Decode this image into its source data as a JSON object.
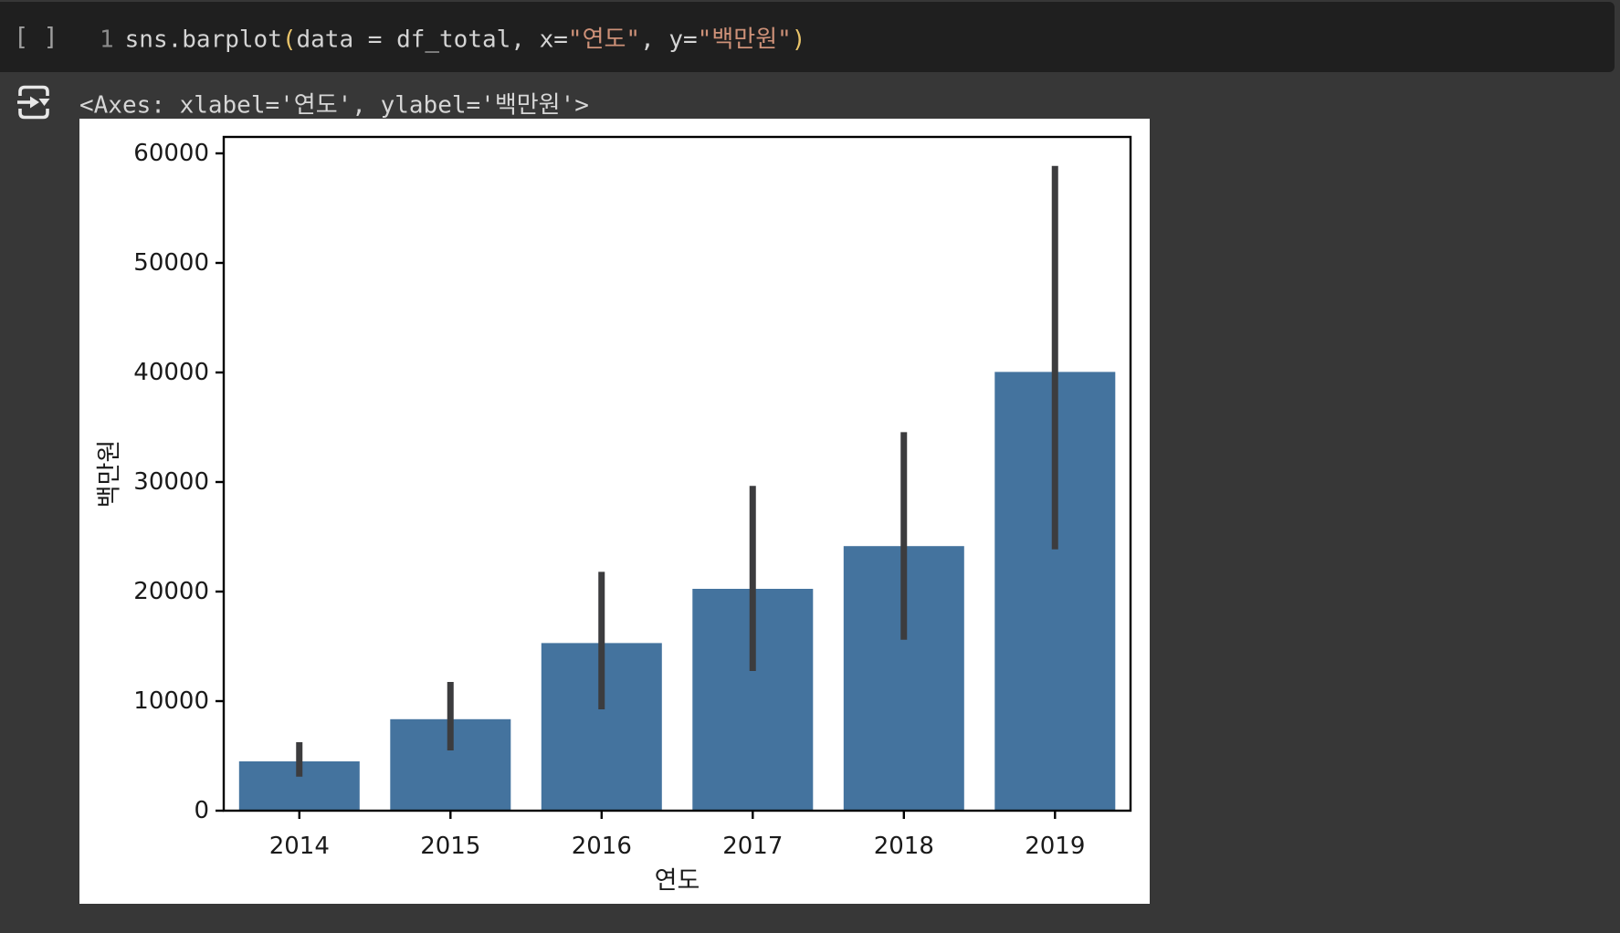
{
  "code_cell": {
    "run_indicator": "[ ]",
    "line_number": "1",
    "tokens": [
      {
        "text": "sns.barplot",
        "color": "default"
      },
      {
        "text": "(",
        "color": "paren"
      },
      {
        "text": "data = df_total, x=",
        "color": "default"
      },
      {
        "text": "\"연도\"",
        "color": "string"
      },
      {
        "text": ", y=",
        "color": "default"
      },
      {
        "text": "\"백만원\"",
        "color": "string"
      },
      {
        "text": ")",
        "color": "paren"
      }
    ]
  },
  "output": {
    "text": "<Axes: xlabel='연도', ylabel='백만원'>"
  },
  "colors": {
    "page_bg": "#373737",
    "code_bg": "#1F1F1F",
    "code_default": "#D4D4D4",
    "code_string": "#CE9178",
    "code_paren": "#E9C46A",
    "code_line_number": "#8B8B8B",
    "run_indicator": "#9E9E9E",
    "output_text": "#D6D6D6",
    "icon": "#E8E8E8",
    "figure_bg": "#FFFFFF",
    "axis_text": "#1A1A1A",
    "spine": "#000000"
  },
  "chart_data": {
    "type": "bar",
    "title": "",
    "categories": [
      "2014",
      "2015",
      "2016",
      "2017",
      "2018",
      "2019"
    ],
    "values": [
      4500,
      8350,
      15300,
      20250,
      24150,
      40050
    ],
    "error_low": [
      3100,
      5500,
      9250,
      12750,
      15600,
      23850
    ],
    "error_high": [
      6250,
      11750,
      21800,
      29650,
      34550,
      58850
    ],
    "xlabel": "연도",
    "ylabel": "백만원",
    "yticks": [
      0,
      10000,
      20000,
      30000,
      40000,
      50000,
      60000
    ],
    "ylim": [
      0,
      61500
    ],
    "grid": false,
    "legend": null,
    "bar_color": "#44739E",
    "error_color": "#3C3C3E"
  }
}
